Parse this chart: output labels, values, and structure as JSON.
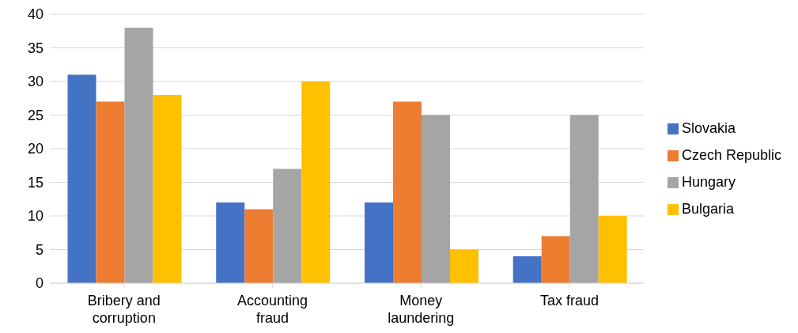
{
  "chart_data": {
    "type": "bar",
    "categories": [
      "Bribery and corruption",
      "Accounting fraud",
      "Money laundering",
      "Tax fraud"
    ],
    "series": [
      {
        "name": "Slovakia",
        "color": "#4472c4",
        "values": [
          31,
          12,
          12,
          4
        ]
      },
      {
        "name": "Czech Republic",
        "color": "#ed7d31",
        "values": [
          27,
          11,
          27,
          7
        ]
      },
      {
        "name": "Hungary",
        "color": "#a5a5a5",
        "values": [
          38,
          17,
          25,
          25
        ]
      },
      {
        "name": "Bulgaria",
        "color": "#ffc000",
        "values": [
          28,
          30,
          5,
          10
        ]
      }
    ],
    "ylim": [
      0,
      40
    ],
    "yticks": [
      0,
      5,
      10,
      15,
      20,
      25,
      30,
      35,
      40
    ],
    "grid": "y",
    "legend": "right"
  }
}
